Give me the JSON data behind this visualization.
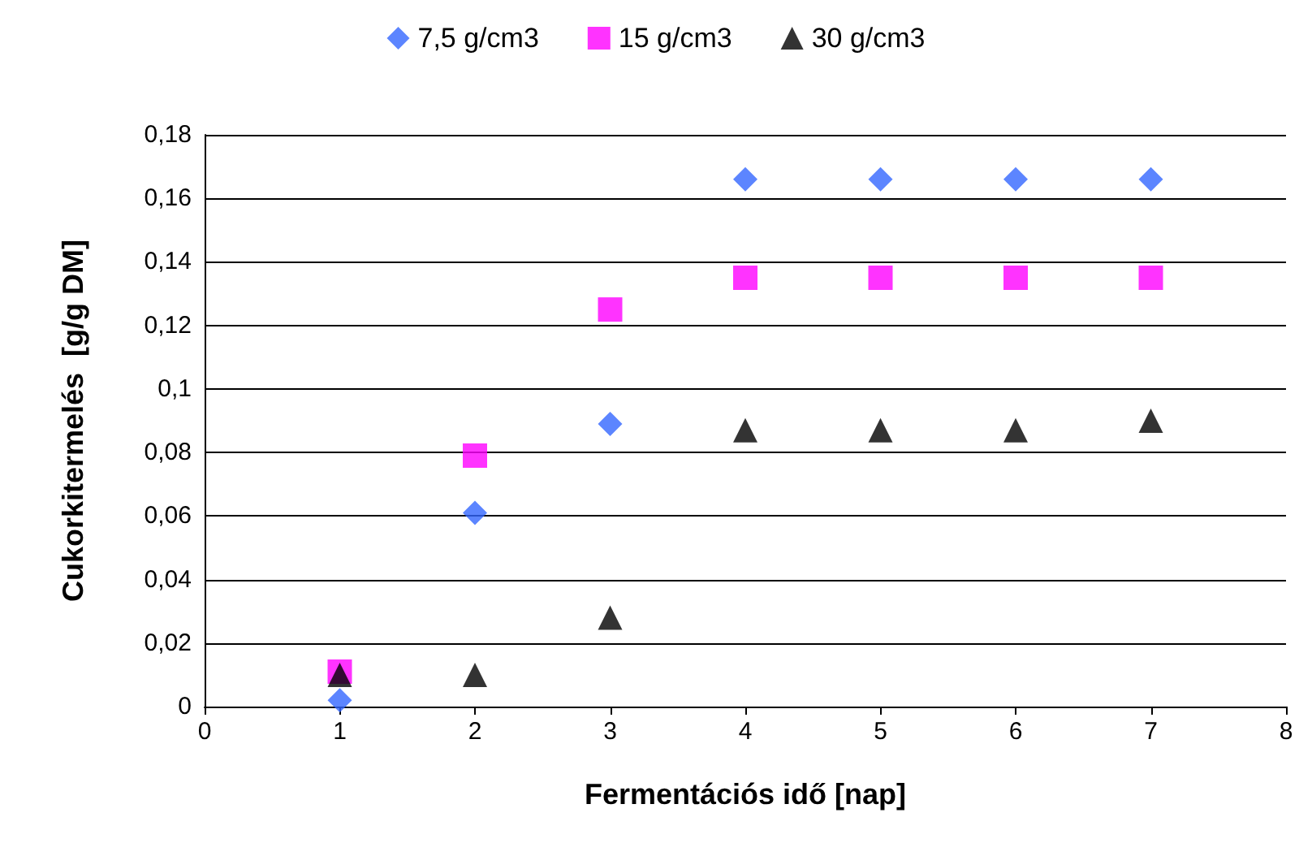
{
  "chart_data": {
    "type": "scatter",
    "xlabel": "Fermentációs idő [nap]",
    "ylabel": "Cukorkitermelés  [g/g DM]",
    "x": [
      1,
      2,
      3,
      4,
      5,
      6,
      7
    ],
    "series": [
      {
        "name": "7,5 g/cm3",
        "color": "#3366ff",
        "marker": "diamond",
        "values": [
          0.002,
          0.061,
          0.089,
          0.166,
          0.166,
          0.166,
          0.166
        ]
      },
      {
        "name": "15 g/cm3",
        "color": "#ff00ff",
        "marker": "square",
        "values": [
          0.011,
          0.079,
          0.125,
          0.135,
          0.135,
          0.135,
          0.135
        ]
      },
      {
        "name": "30 g/cm3",
        "color": "#000000",
        "marker": "triangle",
        "values": [
          0.01,
          0.01,
          0.028,
          0.087,
          0.087,
          0.087,
          0.09
        ]
      }
    ],
    "xlim": [
      0,
      8
    ],
    "xticks": [
      0,
      1,
      2,
      3,
      4,
      5,
      6,
      7,
      8
    ],
    "ylim": [
      0,
      0.18
    ],
    "yticks": [
      0,
      {
        "value": 0.02,
        "label": "0,02"
      },
      {
        "value": 0.04,
        "label": "0,04"
      },
      {
        "value": 0.06,
        "label": "0,06"
      },
      {
        "value": 0.08,
        "label": "0,08"
      },
      {
        "value": 0.1,
        "label": "0,1"
      },
      {
        "value": 0.12,
        "label": "0,12"
      },
      {
        "value": 0.14,
        "label": "0,14"
      },
      {
        "value": 0.16,
        "label": "0,16"
      },
      {
        "value": 0.18,
        "label": "0,18"
      }
    ],
    "grid": "y",
    "legend": "top"
  }
}
